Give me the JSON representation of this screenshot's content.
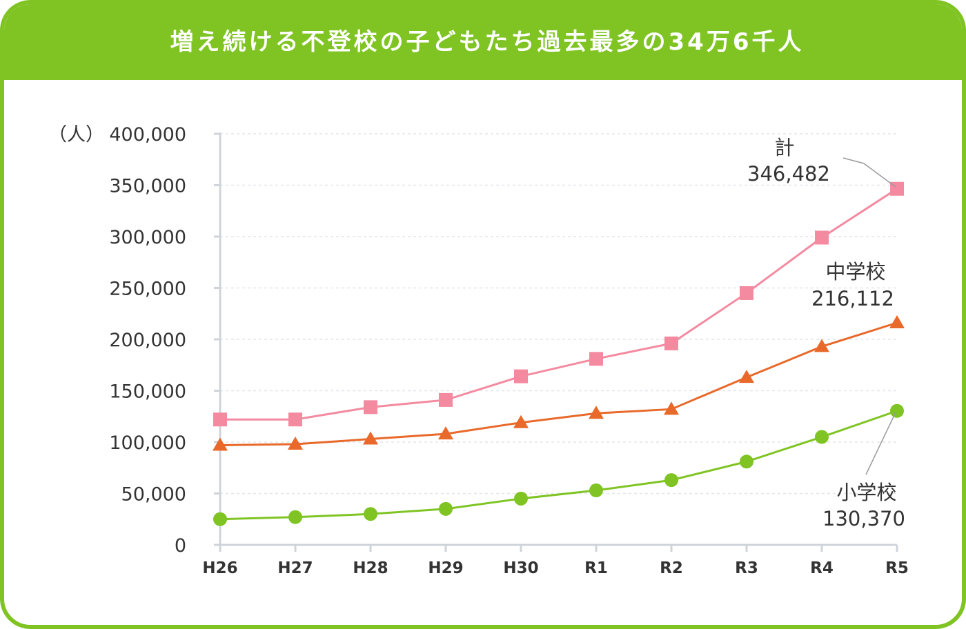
{
  "title": "増え続ける不登校の子どもたち過去最多の34万6千人",
  "chart_data": {
    "type": "line",
    "title": "増え続ける不登校の子どもたち過去最多の34万6千人",
    "ylabel": "（人）",
    "xlabel": "",
    "ylim": [
      0,
      400000
    ],
    "yticks": [
      0,
      50000,
      100000,
      150000,
      200000,
      250000,
      300000,
      350000,
      400000
    ],
    "ytick_labels": [
      "0",
      "50,000",
      "100,000",
      "150,000",
      "200,000",
      "250,000",
      "300,000",
      "350,000",
      "400,000"
    ],
    "categories": [
      "H26",
      "H27",
      "H28",
      "H29",
      "H30",
      "R1",
      "R2",
      "R3",
      "R4",
      "R5"
    ],
    "grid": true,
    "series": [
      {
        "key": "total",
        "name": "計",
        "end_label": "346,482",
        "marker": "square",
        "color": "#f48aa0",
        "values": [
          122000,
          122000,
          134000,
          141000,
          164000,
          181000,
          196000,
          245000,
          299000,
          346482
        ]
      },
      {
        "key": "junior",
        "name": "中学校",
        "end_label": "216,112",
        "marker": "triangle",
        "color": "#e8692a",
        "values": [
          97000,
          98000,
          103000,
          108000,
          119000,
          128000,
          132000,
          163000,
          193000,
          216112
        ]
      },
      {
        "key": "elementary",
        "name": "小学校",
        "end_label": "130,370",
        "marker": "circle",
        "color": "#7fc423",
        "values": [
          25000,
          27000,
          30000,
          35000,
          45000,
          53000,
          63000,
          81000,
          105000,
          130370
        ]
      }
    ]
  }
}
